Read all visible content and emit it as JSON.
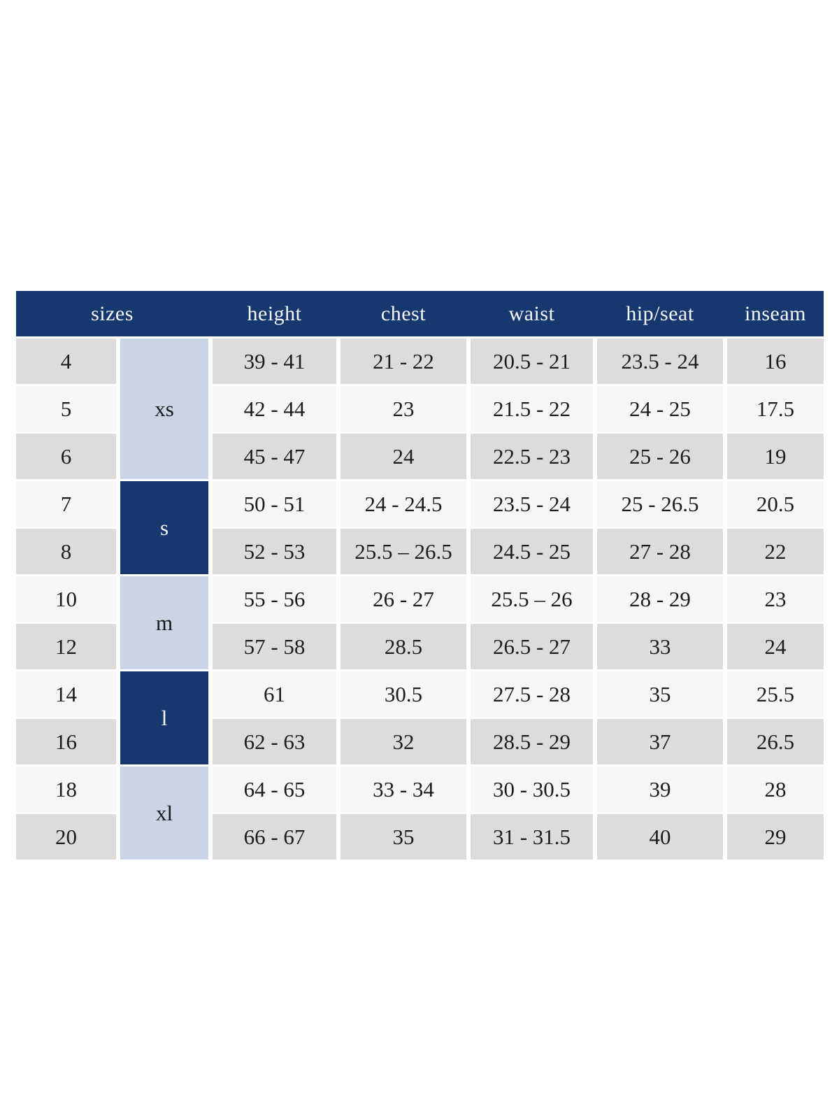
{
  "chart_data": {
    "type": "table",
    "header": [
      "sizes",
      "height",
      "chest",
      "waist",
      "hip/seat",
      "inseam"
    ],
    "size_groups": [
      {
        "label": "xs",
        "sizes": [
          "4",
          "5",
          "6"
        ],
        "style": "light-blue"
      },
      {
        "label": "s",
        "sizes": [
          "7",
          "8"
        ],
        "style": "dark-navy"
      },
      {
        "label": "m",
        "sizes": [
          "10",
          "12"
        ],
        "style": "light-blue"
      },
      {
        "label": "l",
        "sizes": [
          "14",
          "16"
        ],
        "style": "dark-navy"
      },
      {
        "label": "xl",
        "sizes": [
          "18",
          "20"
        ],
        "style": "light-blue"
      }
    ],
    "rows": [
      {
        "size": "4",
        "group": "xs",
        "height": "39 - 41",
        "chest": "21 - 22",
        "waist": "20.5 - 21",
        "hip_seat": "23.5 - 24",
        "inseam": "16"
      },
      {
        "size": "5",
        "group": "xs",
        "height": "42 - 44",
        "chest": "23",
        "waist": "21.5 - 22",
        "hip_seat": "24 - 25",
        "inseam": "17.5"
      },
      {
        "size": "6",
        "group": "xs",
        "height": "45 - 47",
        "chest": "24",
        "waist": "22.5 - 23",
        "hip_seat": "25 - 26",
        "inseam": "19"
      },
      {
        "size": "7",
        "group": "s",
        "height": "50 - 51",
        "chest": "24 - 24.5",
        "waist": "23.5 - 24",
        "hip_seat": "25 - 26.5",
        "inseam": "20.5"
      },
      {
        "size": "8",
        "group": "s",
        "height": "52 - 53",
        "chest": "25.5 – 26.5",
        "waist": "24.5 - 25",
        "hip_seat": "27 - 28",
        "inseam": "22"
      },
      {
        "size": "10",
        "group": "m",
        "height": "55 - 56",
        "chest": "26 - 27",
        "waist": "25.5 – 26",
        "hip_seat": "28 - 29",
        "inseam": "23"
      },
      {
        "size": "12",
        "group": "m",
        "height": "57 - 58",
        "chest": "28.5",
        "waist": "26.5 - 27",
        "hip_seat": "33",
        "inseam": "24"
      },
      {
        "size": "14",
        "group": "l",
        "height": "61",
        "chest": "30.5",
        "waist": "27.5 - 28",
        "hip_seat": "35",
        "inseam": "25.5"
      },
      {
        "size": "16",
        "group": "l",
        "height": "62 - 63",
        "chest": "32",
        "waist": "28.5 - 29",
        "hip_seat": "37",
        "inseam": "26.5"
      },
      {
        "size": "18",
        "group": "xl",
        "height": "64 - 65",
        "chest": "33 - 34",
        "waist": "30 - 30.5",
        "hip_seat": "39",
        "inseam": "28"
      },
      {
        "size": "20",
        "group": "xl",
        "height": "66 - 67",
        "chest": "35",
        "waist": "31 - 31.5",
        "hip_seat": "40",
        "inseam": "29"
      }
    ],
    "layout": {
      "legend": "none",
      "grid": "off",
      "row_striping": [
        "#dcdcdc",
        "#f6f6f6"
      ]
    }
  },
  "colors": {
    "header_bg": "#17386f",
    "header_text": "#f7f8fa",
    "group_light_bg": "#c9d4e5",
    "group_dark_bg": "#17386f",
    "row_gray": "#dcdcdc",
    "row_light": "#f6f6f6",
    "body_text": "#1d1d1b",
    "page_bg": "#ffffff"
  }
}
